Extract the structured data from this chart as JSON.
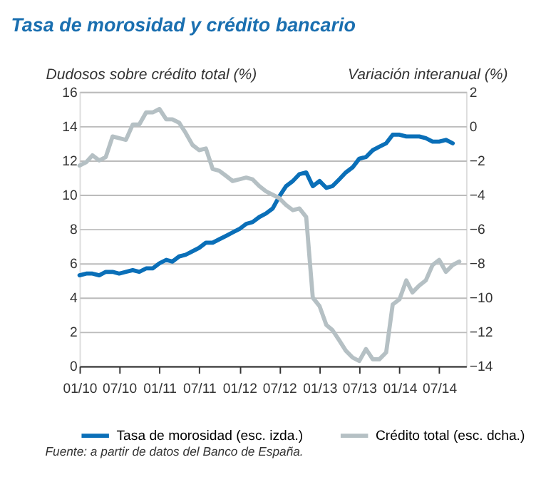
{
  "chart_data": {
    "type": "line",
    "title": "Tasa de morosidad y crédito bancario",
    "ylabel": "Dudosos sobre crédito total (%)",
    "y2label": "Variación interanual (%)",
    "x": [
      "2010-01",
      "2010-02",
      "2010-03",
      "2010-04",
      "2010-05",
      "2010-06",
      "2010-07",
      "2010-08",
      "2010-09",
      "2010-10",
      "2010-11",
      "2010-12",
      "2011-01",
      "2011-02",
      "2011-03",
      "2011-04",
      "2011-05",
      "2011-06",
      "2011-07",
      "2011-08",
      "2011-09",
      "2011-10",
      "2011-11",
      "2011-12",
      "2012-01",
      "2012-02",
      "2012-03",
      "2012-04",
      "2012-05",
      "2012-06",
      "2012-07",
      "2012-08",
      "2012-09",
      "2012-10",
      "2012-11",
      "2012-12",
      "2013-01",
      "2013-02",
      "2013-03",
      "2013-04",
      "2013-05",
      "2013-06",
      "2013-07",
      "2013-08",
      "2013-09",
      "2013-10",
      "2013-11",
      "2013-12",
      "2014-01",
      "2014-02",
      "2014-03",
      "2014-04",
      "2014-05",
      "2014-06",
      "2014-07",
      "2014-08",
      "2014-09",
      "2014-10"
    ],
    "series": [
      {
        "name": "Tasa de morosidad (esc. izda.)",
        "color": "#0a6fb8",
        "axis": "y",
        "values": [
          5.3,
          5.4,
          5.4,
          5.3,
          5.5,
          5.5,
          5.4,
          5.5,
          5.6,
          5.5,
          5.7,
          5.7,
          6.0,
          6.2,
          6.1,
          6.4,
          6.5,
          6.7,
          6.9,
          7.2,
          7.2,
          7.4,
          7.6,
          7.8,
          8.0,
          8.3,
          8.4,
          8.7,
          8.9,
          9.2,
          9.9,
          10.5,
          10.8,
          11.2,
          11.3,
          10.5,
          10.8,
          10.4,
          10.5,
          10.9,
          11.3,
          11.6,
          12.1,
          12.2,
          12.6,
          12.8,
          13.0,
          13.5,
          13.5,
          13.4,
          13.4,
          13.4,
          13.3,
          13.1,
          13.1,
          13.2,
          13.0,
          null
        ]
      },
      {
        "name": "Crédito total (esc. dcha.)",
        "color": "#b5c0c4",
        "axis": "y2",
        "values": [
          -2.3,
          -2.1,
          -1.7,
          -2.0,
          -1.8,
          -0.6,
          -0.7,
          -0.8,
          0.1,
          0.1,
          0.8,
          0.8,
          1.0,
          0.4,
          0.4,
          0.2,
          -0.4,
          -1.1,
          -1.4,
          -1.3,
          -2.5,
          -2.6,
          -2.9,
          -3.2,
          -3.1,
          -3.0,
          -3.1,
          -3.5,
          -3.8,
          -4.0,
          -4.2,
          -4.6,
          -4.9,
          -4.8,
          -5.3,
          -10.0,
          -10.5,
          -11.6,
          -11.9,
          -12.5,
          -13.1,
          -13.5,
          -13.7,
          -13.0,
          -13.6,
          -13.6,
          -13.2,
          -10.4,
          -10.1,
          -9.0,
          -9.7,
          -9.3,
          -9.0,
          -8.1,
          -7.8,
          -8.5,
          -8.1,
          -7.9
        ]
      }
    ],
    "xlim": [
      "2010-01",
      "2014-11"
    ],
    "xticks": [
      {
        "value": "2010-01",
        "label": "01/10"
      },
      {
        "value": "2010-07",
        "label": "07/10"
      },
      {
        "value": "2011-01",
        "label": "01/11"
      },
      {
        "value": "2011-07",
        "label": "07/11"
      },
      {
        "value": "2012-01",
        "label": "01/12"
      },
      {
        "value": "2012-07",
        "label": "07/12"
      },
      {
        "value": "2013-01",
        "label": "01/13"
      },
      {
        "value": "2013-07",
        "label": "07/13"
      },
      {
        "value": "2014-01",
        "label": "01/14"
      },
      {
        "value": "2014-07",
        "label": "07/14"
      }
    ],
    "ylim": [
      0,
      16
    ],
    "yticks": [
      0,
      2,
      4,
      6,
      8,
      10,
      12,
      14,
      16
    ],
    "y2lim": [
      -14,
      2
    ],
    "y2ticks": [
      -14,
      -12,
      -10,
      -8,
      -6,
      -4,
      -2,
      0,
      2
    ],
    "grid": "y",
    "legend": "bottom",
    "marker": "none",
    "line_style": "solid",
    "annotations": [
      "Fuente: a partir de datos del Banco de España."
    ]
  }
}
